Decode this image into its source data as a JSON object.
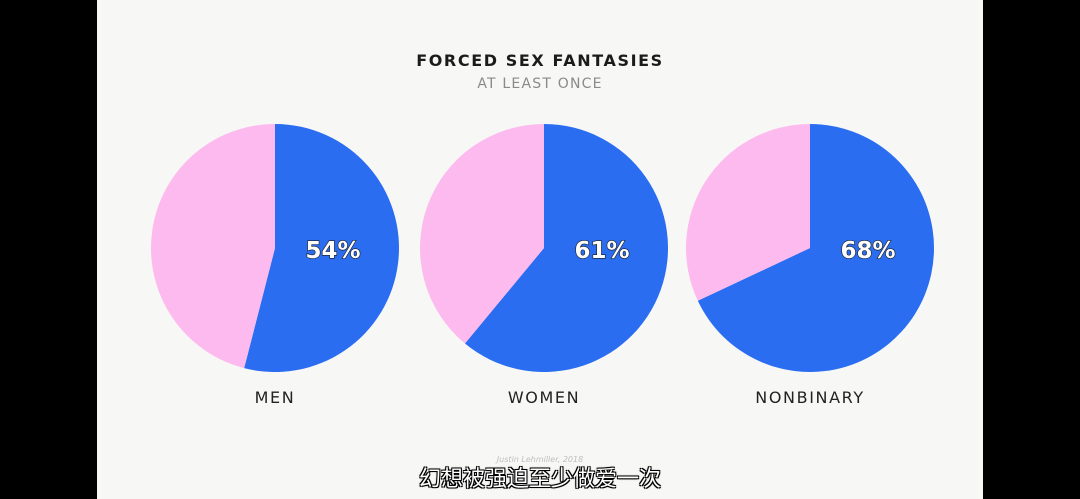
{
  "chart_data": {
    "type": "pie",
    "title": "FORCED SEX FANTASIES",
    "subtitle": "AT LEAST ONCE",
    "categories": [
      "MEN",
      "WOMEN",
      "NONBINARY"
    ],
    "values": [
      54,
      61,
      68
    ],
    "value_labels": [
      "54%",
      "61%",
      "68%"
    ],
    "colors": {
      "yes": "#2a6df1",
      "no": "#fdbaee"
    }
  },
  "credit": "Justin Lehmiller, 2018",
  "caption_subtitle": "幻想被强迫至少做爱一次"
}
